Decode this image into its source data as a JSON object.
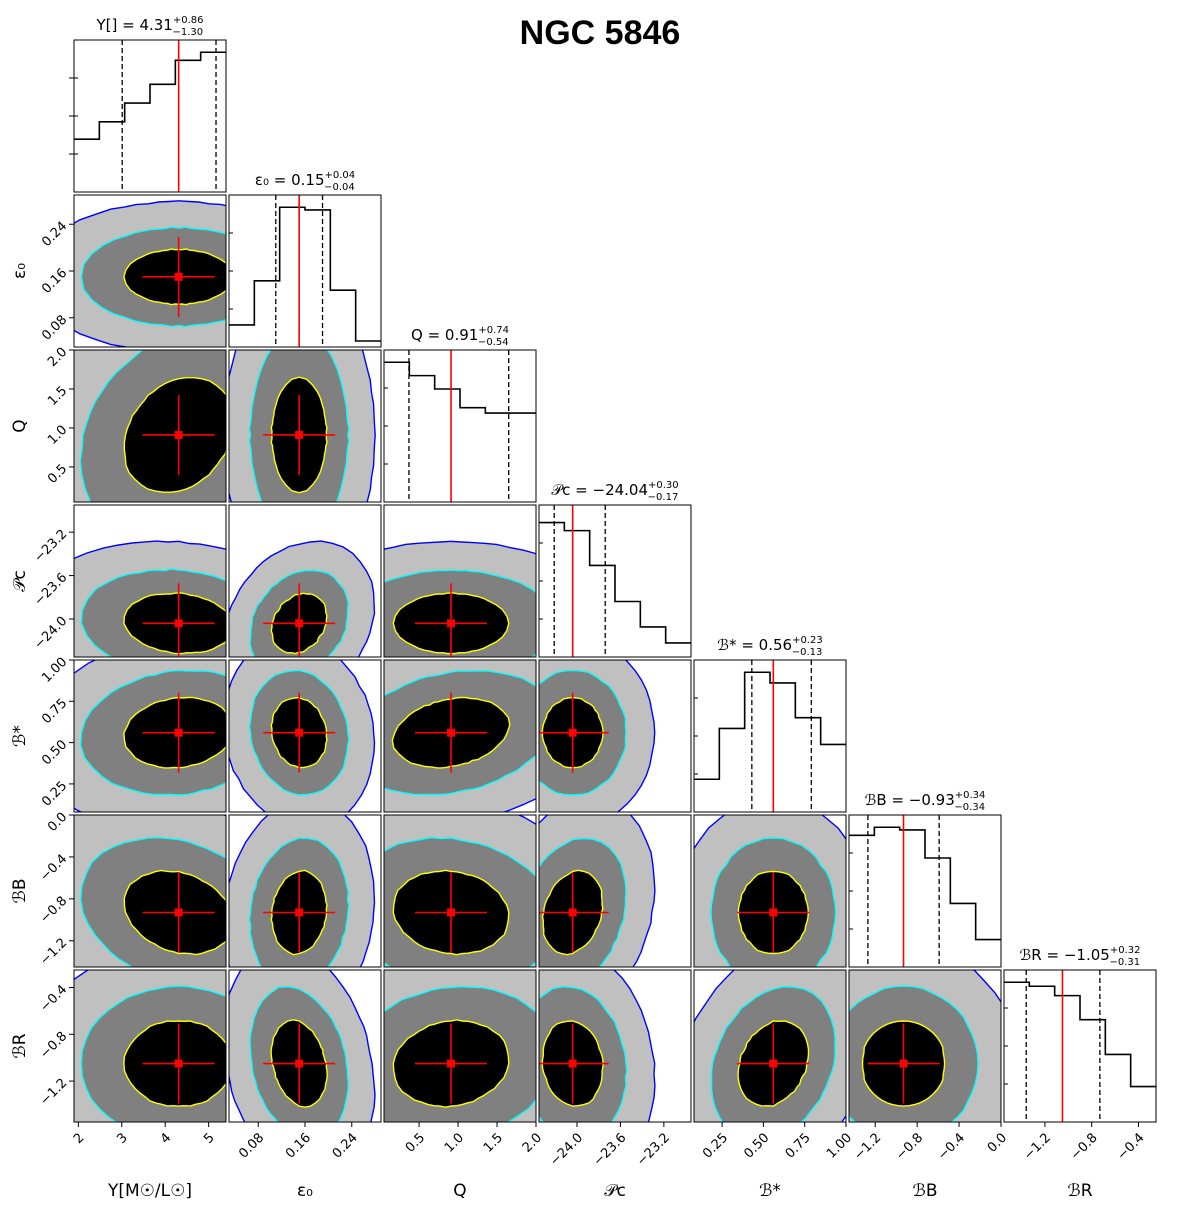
{
  "title": "NGC 5846",
  "chart_data": {
    "type": "corner",
    "title": "NGC 5846",
    "params": [
      {
        "key": "Y",
        "label": "Y[M☉/L☉]",
        "label_main": "Y[",
        "label_frac_num": "M☉",
        "label_frac_den": "L☉",
        "label_end": "]",
        "title_prefix": "Y[",
        "title_eq": "] = ",
        "value": "4.31",
        "plus": "+0.86",
        "minus": "−1.30",
        "range": [
          1.9,
          5.4
        ],
        "ticks": [
          2,
          3,
          4,
          5
        ],
        "tick_labels": [
          "2",
          "3",
          "4",
          "5"
        ],
        "median": 4.31,
        "q16": 3.01,
        "q84": 5.17,
        "hist": [
          0.35,
          0.48,
          0.62,
          0.76,
          0.94,
          1.0
        ]
      },
      {
        "key": "eps0",
        "label": "ε₀",
        "title_prefix": "ε₀",
        "title_eq": " = ",
        "value": "0.15",
        "plus": "+0.04",
        "minus": "−0.04",
        "range": [
          0.03,
          0.29
        ],
        "ticks": [
          0.08,
          0.16,
          0.24
        ],
        "tick_labels": [
          "0.08",
          "0.16",
          "0.24"
        ],
        "median": 0.15,
        "q16": 0.11,
        "q84": 0.19,
        "hist": [
          0.12,
          0.45,
          1.0,
          0.98,
          0.38,
          0.0
        ]
      },
      {
        "key": "Q",
        "label": "Q",
        "title_prefix": "Q",
        "title_eq": " = ",
        "value": "0.91",
        "plus": "+0.74",
        "minus": "−0.54",
        "range": [
          0.05,
          2.0
        ],
        "ticks": [
          0.5,
          1.0,
          1.5,
          2.0
        ],
        "tick_labels": [
          "0.5",
          "1.0",
          "1.5",
          "2.0"
        ],
        "median": 0.91,
        "q16": 0.37,
        "q84": 1.65,
        "hist": [
          1.0,
          0.9,
          0.8,
          0.66,
          0.62,
          0.62
        ]
      },
      {
        "key": "Pc",
        "label": "𝒫c",
        "title_prefix": "𝒫c",
        "title_eq": " = ",
        "value": "−24.04",
        "plus": "+0.30",
        "minus": "−0.17",
        "range": [
          -24.35,
          -22.95
        ],
        "ticks": [
          -24.0,
          -23.6,
          -23.2
        ],
        "tick_labels": [
          "−24.0",
          "−23.6",
          "−23.2"
        ],
        "median": -24.04,
        "q16": -24.21,
        "q84": -23.74,
        "hist": [
          0.96,
          0.9,
          0.64,
          0.37,
          0.18,
          0.06
        ]
      },
      {
        "key": "Bs",
        "label": "ℬ*",
        "title_prefix": "ℬ*",
        "title_eq": " = ",
        "value": "0.56",
        "plus": "+0.23",
        "minus": "−0.13",
        "range": [
          0.08,
          1.0
        ],
        "ticks": [
          0.25,
          0.5,
          0.75,
          1.0
        ],
        "tick_labels": [
          "0.25",
          "0.50",
          "0.75",
          "1.00"
        ],
        "median": 0.56,
        "q16": 0.43,
        "q84": 0.79,
        "hist": [
          0.2,
          0.58,
          1.0,
          0.92,
          0.66,
          0.46
        ]
      },
      {
        "key": "BB",
        "label": "ℬB",
        "title_prefix": "ℬB",
        "title_eq": " = ",
        "value": "−0.93",
        "plus": "+0.34",
        "minus": "−0.34",
        "range": [
          -1.45,
          0.0
        ],
        "ticks": [
          -1.2,
          -0.8,
          -0.4,
          0.0
        ],
        "tick_labels": [
          "−1.2",
          "−0.8",
          "−0.4",
          "0.0"
        ],
        "median": -0.93,
        "q16": -1.27,
        "q84": -0.59,
        "hist": [
          0.94,
          1.0,
          0.98,
          0.77,
          0.43,
          0.16
        ]
      },
      {
        "key": "BR",
        "label": "ℬR",
        "title_prefix": "ℬR",
        "title_eq": " = ",
        "value": "−1.05",
        "plus": "+0.32",
        "minus": "−0.31",
        "range": [
          -1.55,
          -0.25
        ],
        "ticks": [
          -1.2,
          -0.8,
          -0.4
        ],
        "tick_labels": [
          "−1.2",
          "−0.8",
          "−0.4"
        ],
        "median": -1.05,
        "q16": -1.36,
        "q84": -0.73,
        "hist": [
          1.0,
          0.97,
          0.9,
          0.72,
          0.46,
          0.22
        ]
      }
    ],
    "contour_colors": {
      "level1_fill": "#000000",
      "level1_line": "#ffff00",
      "level2_fill": "#808080",
      "level2_line": "#00ffff",
      "level3_fill": "#c0c0c0",
      "level3_line": "#0000ff"
    },
    "marker_color": "#ff0000",
    "median_line_color": "#ff0000",
    "quantile_line_style": "dashed"
  }
}
